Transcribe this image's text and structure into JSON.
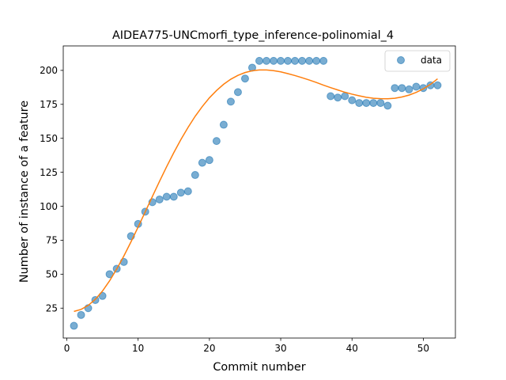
{
  "chart_data": {
    "type": "scatter",
    "title": "AIDEA775-UNCmorfi_type_inference-polinomial_4",
    "xlabel": "Commit number",
    "ylabel": "Number of instance of a feature",
    "xlim": [
      -0.5,
      54.5
    ],
    "ylim": [
      3,
      218
    ],
    "xticks": [
      0,
      10,
      20,
      30,
      40,
      50
    ],
    "yticks": [
      25,
      50,
      75,
      100,
      125,
      150,
      175,
      200
    ],
    "grid": false,
    "legend_position": "top-right",
    "series": [
      {
        "name": "data",
        "kind": "scatter",
        "color": "#1f77b4",
        "x": [
          1,
          2,
          3,
          4,
          5,
          6,
          7,
          8,
          9,
          10,
          11,
          12,
          13,
          14,
          15,
          16,
          17,
          18,
          19,
          20,
          21,
          22,
          23,
          24,
          25,
          26,
          27,
          28,
          29,
          30,
          31,
          32,
          33,
          34,
          35,
          36,
          37,
          38,
          39,
          40,
          41,
          42,
          43,
          44,
          45,
          46,
          47,
          48,
          49,
          50,
          51,
          52
        ],
        "y": [
          12,
          20,
          25,
          31,
          34,
          50,
          54,
          59,
          78,
          87,
          96,
          103,
          105,
          107,
          107,
          110,
          111,
          123,
          132,
          134,
          148,
          160,
          177,
          184,
          194,
          202,
          207,
          207,
          207,
          207,
          207,
          207,
          207,
          207,
          207,
          207,
          181,
          180,
          181,
          178,
          176,
          176,
          176,
          176,
          174,
          187,
          187,
          186,
          188,
          187,
          189,
          189
        ]
      },
      {
        "kind": "line",
        "color": "#ff7f0e",
        "x": [
          1,
          2,
          3,
          4,
          5,
          6,
          7,
          8,
          9,
          10,
          11,
          12,
          13,
          14,
          15,
          16,
          17,
          18,
          19,
          20,
          21,
          22,
          23,
          24,
          25,
          26,
          27,
          28,
          29,
          30,
          31,
          32,
          33,
          34,
          35,
          36,
          37,
          38,
          39,
          40,
          41,
          42,
          43,
          44,
          45,
          46,
          47,
          48,
          49,
          50,
          51,
          52
        ],
        "y": [
          22.6,
          24.1,
          27.0,
          31.5,
          37.6,
          45.1,
          53.8,
          63.4,
          73.8,
          84.7,
          95.9,
          107.2,
          118.3,
          129.1,
          139.4,
          149.1,
          158.0,
          166.2,
          173.4,
          179.8,
          185.2,
          189.8,
          193.5,
          196.3,
          198.4,
          199.7,
          200.3,
          200.3,
          199.8,
          198.9,
          197.6,
          196.2,
          194.6,
          192.9,
          191.1,
          189.1,
          187.3,
          185.6,
          183.9,
          182.5,
          181.3,
          180.2,
          179.5,
          179.2,
          179.1,
          179.5,
          180.4,
          181.8,
          183.8,
          186.4,
          189.7,
          193.8
        ]
      }
    ]
  }
}
